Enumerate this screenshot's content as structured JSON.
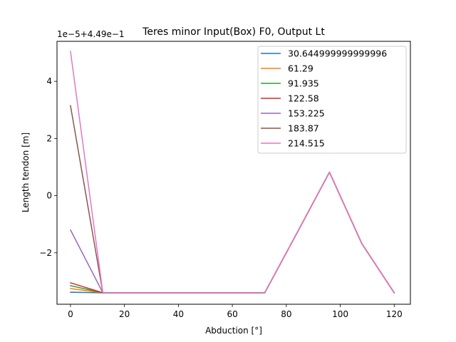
{
  "chart_data": {
    "type": "line",
    "title": "Teres minor Input(Box) F0, Output Lt",
    "xlabel": "Abduction [°]",
    "ylabel": "Length tendon [m]",
    "offset_text": "1e−5+4.49e−1",
    "xlim": [
      -5,
      126
    ],
    "ylim": [
      -3.8,
      5.4
    ],
    "x_ticks": [
      0,
      20,
      40,
      60,
      80,
      100,
      120
    ],
    "x_tick_labels": [
      "0",
      "20",
      "40",
      "60",
      "80",
      "100",
      "120"
    ],
    "y_ticks": [
      -2,
      0,
      2,
      4
    ],
    "y_tick_labels": [
      "−2",
      "0",
      "2",
      "4"
    ],
    "grid": false,
    "legend_position": "top-right",
    "x": [
      0,
      12,
      24,
      36,
      48,
      60,
      72,
      84,
      96,
      108,
      120
    ],
    "series": [
      {
        "name": "30.644999999999996",
        "color": "#1f77b4",
        "values": [
          -3.38,
          -3.4,
          -3.4,
          -3.4,
          -3.4,
          -3.4,
          -3.4,
          -1.3,
          0.82,
          -1.68,
          -3.4
        ]
      },
      {
        "name": "61.29",
        "color": "#ff7f0e",
        "values": [
          -3.25,
          -3.4,
          -3.4,
          -3.4,
          -3.4,
          -3.4,
          -3.4,
          -1.3,
          0.82,
          -1.68,
          -3.4
        ]
      },
      {
        "name": "91.935",
        "color": "#2ca02c",
        "values": [
          -3.15,
          -3.4,
          -3.4,
          -3.4,
          -3.4,
          -3.4,
          -3.4,
          -1.3,
          0.82,
          -1.68,
          -3.4
        ]
      },
      {
        "name": "122.58",
        "color": "#d62728",
        "values": [
          -3.05,
          -3.4,
          -3.4,
          -3.4,
          -3.4,
          -3.4,
          -3.4,
          -1.3,
          0.82,
          -1.68,
          -3.4
        ]
      },
      {
        "name": "153.225",
        "color": "#9467bd",
        "values": [
          -1.2,
          -3.4,
          -3.4,
          -3.4,
          -3.4,
          -3.4,
          -3.4,
          -1.3,
          0.82,
          -1.68,
          -3.4
        ]
      },
      {
        "name": "183.87",
        "color": "#8c564b",
        "values": [
          3.15,
          -3.4,
          -3.4,
          -3.4,
          -3.4,
          -3.4,
          -3.4,
          -1.3,
          0.82,
          -1.68,
          -3.4
        ]
      },
      {
        "name": "214.515",
        "color": "#e377c2",
        "values": [
          5.05,
          -3.4,
          -3.4,
          -3.4,
          -3.4,
          -3.4,
          -3.4,
          -1.3,
          0.82,
          -1.68,
          -3.4
        ]
      }
    ]
  }
}
